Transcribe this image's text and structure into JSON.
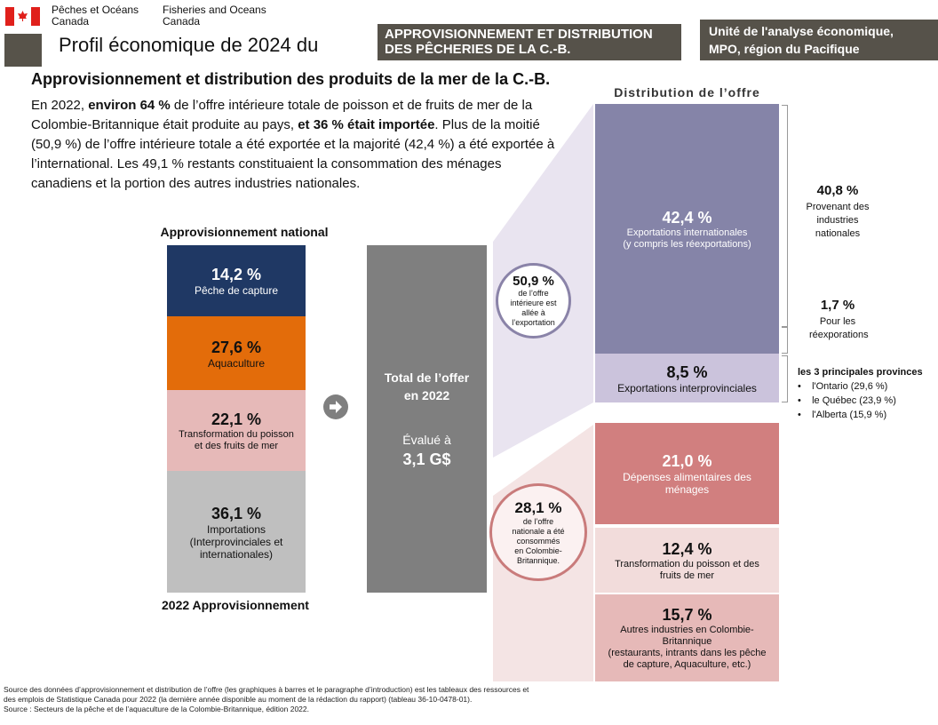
{
  "header": {
    "org_fr": [
      "Pêches et Océans",
      "Canada"
    ],
    "org_en": [
      "Fisheries and Oceans",
      "Canada"
    ],
    "profile_title": "Profil économique de 2024 du",
    "banner": [
      "APPROVISIONNEMENT ET DISTRIBUTION",
      "DES PÊCHERIES DE LA C.-B."
    ],
    "unit": [
      "Unité de l'analyse économique,",
      "MPO, région du Pacifique"
    ]
  },
  "heading": "Approvisionnement et distribution des produits de la mer de la C.-B.",
  "intro": {
    "p1": "En 2022, ",
    "b1": "environ 64 %",
    "p2": " de l’offre intérieure totale de poisson et de fruits de mer de la Colombie-Britannique était produite au pays, ",
    "b2": "et 36 % était importée",
    "p3": ". Plus de la moitié (50,9 %) de l’offre intérieure totale a été exportée et la majorité (42,4 %) a été exportée à l’international. Les 49,1 % restants constituaient la consommation des ménages canadiens et la portion des autres industries nationales."
  },
  "supply": {
    "title": "Approvisionnement national",
    "footer": "2022 Approvisionnement",
    "segments": [
      {
        "value": "14,2 %",
        "label": "Pêche de capture",
        "color": "#1f3864"
      },
      {
        "value": "27,6 %",
        "label": "Aquaculture",
        "color": "#e36c0a"
      },
      {
        "value": "22,1 %",
        "label": "Transformation du poisson et des fruits de mer",
        "color": "#e6b9b8"
      },
      {
        "value": "36,1 %",
        "label": "Importations (Interprovinciales et internationales)",
        "color": "#bfbfbf"
      }
    ]
  },
  "total": {
    "title": "Total de l’offer en 2022",
    "valued": "Évalué à",
    "amount": "3,1 G$"
  },
  "distribution": {
    "title": "Distribution de l’offre",
    "export_circle": {
      "value": "50,9 %",
      "text": "de l’offre intérieure est allée à l’exportation"
    },
    "domestic_circle": {
      "value": "28,1 %",
      "text": "de l’offre nationale a été consommés en Colombie-Britannique."
    },
    "intl": {
      "value": "42,4 %",
      "label": "Exportations internationales",
      "sub": "(y compris les réexportations)"
    },
    "interprov": {
      "value": "8,5 %",
      "label": "Exportations interprovinciales"
    },
    "household": {
      "value": "21,0 %",
      "label": "Dépenses alimentaires des ménages"
    },
    "processing": {
      "value": "12,4 %",
      "label": "Transformation du poisson et des fruits de mer"
    },
    "other": {
      "value": "15,7 %",
      "label": "Autres industries en Colombie-Britannique",
      "sub": "(restaurants, intrants dans les pêche de capture, Aquaculture, etc.)"
    },
    "from_domestic": {
      "value": "40,8 %",
      "label": "Provenant des industries nationales"
    },
    "reexport": {
      "value": "1,7 %",
      "label": "Pour les réexporations"
    },
    "provinces": {
      "title": "les 3 principales provinces",
      "items": [
        "l'Ontario (29,6 %)",
        "le Québec (23,9 %)",
        "l'Alberta (15,9 %)"
      ]
    }
  },
  "sources": [
    "Source des données d’approvisionnement et distribution de l’offre (les graphiques à barres et le paragraphe d’introduction) est les tableaux des ressources et",
    "des emplois de Statistique Canada pour 2022 (la dernière année disponible au moment de la rédaction du rapport) (tableau 36-10-0478-01).",
    "Source : Secteurs de la pêche et de l’aquaculture de la Colombie-Britannique, édition 2022."
  ]
}
